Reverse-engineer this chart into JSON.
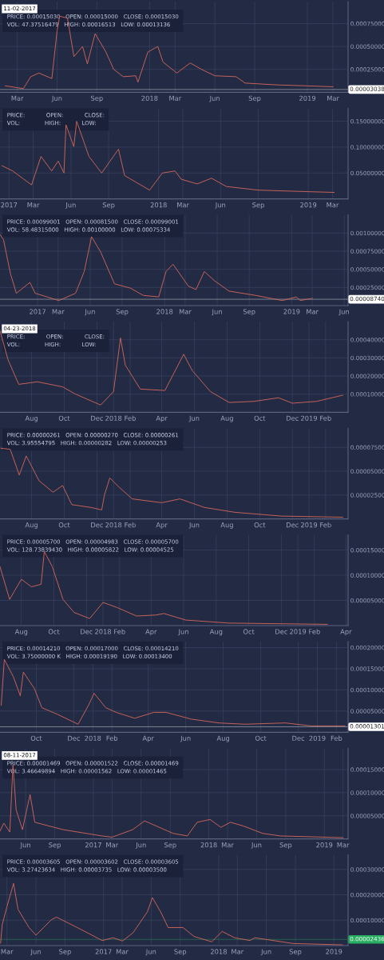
{
  "chart_data": [
    {
      "type": "line",
      "grid": true,
      "annotations": [
        "PRICE: 0.00015030   OPEN: 0.00015000   CLOSE: 0.00015030",
        "VOL: 47.37516479   HIGH: 0.00016513   LOW: 0.00013136",
        "11-02-2017"
      ],
      "xlim": [
        "2017-01-20",
        "2019-04-05"
      ],
      "ylim": [
        0,
        0.00099
      ],
      "xticks": [
        {
          "value": "2017-03-01",
          "label": "Mar"
        },
        {
          "value": "2017-06-01",
          "label": "Jun"
        },
        {
          "value": "2017-09-01",
          "label": "Sep"
        },
        {
          "value": "2018-01-01",
          "label": "2018"
        },
        {
          "value": "2018-03-01",
          "label": "Mar"
        },
        {
          "value": "2018-06-01",
          "label": "Jun"
        },
        {
          "value": "2018-09-01",
          "label": "Sep"
        },
        {
          "value": "2019-01-01",
          "label": "2019"
        },
        {
          "value": "2019-03-01",
          "label": "Mar"
        }
      ],
      "yticks": [
        {
          "value": 0.00025,
          "label": "0.00025000"
        },
        {
          "value": 0.0005,
          "label": "0.00050000"
        },
        {
          "value": 0.00075,
          "label": "0.00075000"
        }
      ],
      "ref_lines": [
        {
          "axis": "y",
          "value": 3.038e-05,
          "label": "0.00003038",
          "color": "#ffffff"
        }
      ],
      "x": [
        "2017-02-01",
        "2017-03-15",
        "2017-04-01",
        "2017-04-20",
        "2017-05-20",
        "2017-06-01",
        "2017-06-07",
        "2017-06-25",
        "2017-07-10",
        "2017-07-30",
        "2017-08-10",
        "2017-08-28",
        "2017-09-22",
        "2017-10-10",
        "2017-11-01",
        "2017-11-30",
        "2017-12-05",
        "2017-12-28",
        "2018-01-20",
        "2018-02-01",
        "2018-03-05",
        "2018-04-05",
        "2018-05-01",
        "2018-06-01",
        "2018-07-20",
        "2018-08-10",
        "2018-10-25",
        "2018-12-31",
        "2019-03-01"
      ],
      "series": [
        {
          "color": "#c8645a",
          "values": [
            7e-05,
            4e-05,
            0.00017,
            0.00021,
            0.00015,
            0.00067,
            0.00083,
            0.00081,
            0.00039,
            0.0005,
            0.00031,
            0.00064,
            0.00044,
            0.00025,
            0.00017,
            0.00018,
            0.00011,
            0.00044,
            0.0005,
            0.00033,
            0.00021,
            0.00032,
            0.00025,
            0.00018,
            0.00017,
            0.0001,
            8e-05,
            7e-05,
            6e-05
          ]
        }
      ]
    },
    {
      "type": "line",
      "grid": true,
      "annotations": [
        "PRICE:            OPEN:            CLOSE:",
        "VOL:              HIGH:            LOW:"
      ],
      "xlim": [
        "2016-12-10",
        "2019-04-08"
      ],
      "ylim": [
        0,
        0.175
      ],
      "xticks": [
        {
          "value": "2017-01-01",
          "label": "2017"
        },
        {
          "value": "2017-03-01",
          "label": "Mar"
        },
        {
          "value": "2017-06-01",
          "label": "Jun"
        },
        {
          "value": "2017-09-01",
          "label": "Sep"
        },
        {
          "value": "2018-01-01",
          "label": "2018"
        },
        {
          "value": "2018-03-01",
          "label": "Mar"
        },
        {
          "value": "2018-06-01",
          "label": "Jun"
        },
        {
          "value": "2018-09-01",
          "label": "Sep"
        },
        {
          "value": "2019-01-01",
          "label": "2019"
        },
        {
          "value": "2019-03-01",
          "label": "Mar"
        }
      ],
      "yticks": [
        {
          "value": 0.05,
          "label": "0.05000000"
        },
        {
          "value": 0.1,
          "label": "0.10000000"
        },
        {
          "value": 0.15,
          "label": "0.15000000"
        }
      ],
      "x": [
        "2016-12-15",
        "2017-01-10",
        "2017-02-25",
        "2017-03-20",
        "2017-04-15",
        "2017-05-01",
        "2017-05-15",
        "2017-05-20",
        "2017-06-08",
        "2017-06-15",
        "2017-07-15",
        "2017-08-15",
        "2017-09-25",
        "2017-10-10",
        "2017-12-10",
        "2018-01-10",
        "2018-02-10",
        "2018-02-25",
        "2018-04-05",
        "2018-05-10",
        "2018-06-15",
        "2018-09-01",
        "2019-01-01",
        "2019-03-05"
      ],
      "series": [
        {
          "color": "#c8645a",
          "values": [
            0.064,
            0.054,
            0.027,
            0.082,
            0.054,
            0.073,
            0.05,
            0.143,
            0.101,
            0.15,
            0.082,
            0.05,
            0.096,
            0.045,
            0.017,
            0.05,
            0.054,
            0.038,
            0.029,
            0.04,
            0.024,
            0.017,
            0.014,
            0.0126
          ]
        }
      ]
    },
    {
      "type": "line",
      "grid": true,
      "annotations": [
        "PRICE: 0.00099001   OPEN: 0.00081500   CLOSE: 0.00099001",
        "VOL: 58.48315000   HIGH: 0.00100000   LOW: 0.00075334"
      ],
      "xlim": [
        "2016-09-15",
        "2019-06-12"
      ],
      "ylim": [
        0,
        0.00125
      ],
      "xticks": [
        {
          "value": "2017-01-01",
          "label": "2017"
        },
        {
          "value": "2017-03-01",
          "label": "Mar"
        },
        {
          "value": "2017-06-01",
          "label": "Jun"
        },
        {
          "value": "2017-09-01",
          "label": "Sep"
        },
        {
          "value": "2018-01-01",
          "label": "2018"
        },
        {
          "value": "2018-03-01",
          "label": "Mar"
        },
        {
          "value": "2018-06-01",
          "label": "Jun"
        },
        {
          "value": "2018-09-01",
          "label": "Sep"
        },
        {
          "value": "2019-01-01",
          "label": "2019"
        },
        {
          "value": "2019-03-01",
          "label": "Mar"
        },
        {
          "value": "2019-06-01",
          "label": "Jun"
        }
      ],
      "yticks": [
        {
          "value": 0.00025,
          "label": "0.00025000"
        },
        {
          "value": 0.0005,
          "label": "0.00050000"
        },
        {
          "value": 0.00075,
          "label": "0.00075000"
        },
        {
          "value": 0.001,
          "label": "0.00100000"
        }
      ],
      "ref_lines": [
        {
          "axis": "y",
          "value": 8.74e-05,
          "label": "0.00008740",
          "color": "#ffffff"
        }
      ],
      "x": [
        "2016-09-15",
        "2016-09-25",
        "2016-10-15",
        "2016-11-01",
        "2016-12-10",
        "2016-12-25",
        "2017-03-03",
        "2017-04-20",
        "2017-05-15",
        "2017-06-05",
        "2017-07-01",
        "2017-08-10",
        "2017-09-25",
        "2017-11-01",
        "2017-12-15",
        "2018-01-05",
        "2018-01-25",
        "2018-03-10",
        "2018-04-01",
        "2018-04-25",
        "2018-05-25",
        "2018-07-05",
        "2018-09-20",
        "2018-12-05",
        "2019-01-15",
        "2019-01-25",
        "2019-03-01"
      ],
      "series": [
        {
          "color": "#c8645a",
          "values": [
            0.00098,
            0.00091,
            0.00044,
            0.00017,
            0.00032,
            0.00017,
            7e-05,
            0.00017,
            0.00047,
            0.00095,
            0.00074,
            0.0003,
            0.00024,
            0.00014,
            0.00012,
            0.00047,
            0.00057,
            0.00027,
            0.00022,
            0.00047,
            0.00034,
            0.0002,
            0.00014,
            7e-05,
            0.00012,
            7e-05,
            0.0001
          ]
        }
      ]
    },
    {
      "type": "line",
      "grid": true,
      "annotations": [
        "PRICE:            OPEN:            CLOSE:",
        "VOL:              HIGH:            LOW:",
        "04-23-2018"
      ],
      "xlim": [
        "2017-06-03",
        "2019-03-15"
      ],
      "ylim": [
        0,
        0.0005
      ],
      "xticks": [
        {
          "value": "2017-08-01",
          "label": "Aug"
        },
        {
          "value": "2017-10-01",
          "label": "Oct"
        },
        {
          "value": "2017-12-01",
          "label": "Dec"
        },
        {
          "value": "2018-01-01",
          "label": "2018"
        },
        {
          "value": "2018-02-01",
          "label": "Feb"
        },
        {
          "value": "2018-04-01",
          "label": "Apr"
        },
        {
          "value": "2018-06-01",
          "label": "Jun"
        },
        {
          "value": "2018-08-01",
          "label": "Aug"
        },
        {
          "value": "2018-10-01",
          "label": "Oct"
        },
        {
          "value": "2018-12-01",
          "label": "Dec"
        },
        {
          "value": "2019-01-01",
          "label": "2019"
        },
        {
          "value": "2019-02-01",
          "label": "Feb"
        }
      ],
      "yticks": [
        {
          "value": 0.0001,
          "label": "0.00010000"
        },
        {
          "value": 0.0002,
          "label": "0.00020000"
        },
        {
          "value": 0.0003,
          "label": "0.00030000"
        },
        {
          "value": 0.0004,
          "label": "0.00040000"
        }
      ],
      "x": [
        "2017-06-03",
        "2017-06-18",
        "2017-07-08",
        "2017-08-12",
        "2017-09-28",
        "2017-10-22",
        "2017-12-08",
        "2018-01-01",
        "2018-01-14",
        "2018-01-23",
        "2018-02-20",
        "2018-04-07",
        "2018-05-12",
        "2018-05-28",
        "2018-07-01",
        "2018-08-05",
        "2018-09-20",
        "2018-11-05",
        "2018-12-01",
        "2019-01-15",
        "2019-03-05"
      ],
      "series": [
        {
          "color": "#c8645a",
          "values": [
            0.00045,
            0.00029,
            0.000154,
            0.000168,
            0.00014,
            0.0001,
            4e-05,
            0.000114,
            0.00041,
            0.00026,
            0.000128,
            0.00012,
            0.00032,
            0.00023,
            0.000114,
            5.4e-05,
            6e-05,
            8e-05,
            5e-05,
            6e-05,
            9.4e-05
          ]
        }
      ]
    },
    {
      "type": "line",
      "grid": true,
      "annotations": [
        "PRICE: 0.00000261   OPEN: 0.00000270   CLOSE: 0.00000261",
        "VOL: 3.95554795   HIGH: 0.00000282   LOW: 0.00000253"
      ],
      "xlim": [
        "2017-06-03",
        "2019-03-15"
      ],
      "ylim": [
        0,
        9.5e-05
      ],
      "xticks": [
        {
          "value": "2017-08-01",
          "label": "Aug"
        },
        {
          "value": "2017-10-01",
          "label": "Oct"
        },
        {
          "value": "2017-12-01",
          "label": "Dec"
        },
        {
          "value": "2018-01-01",
          "label": "2018"
        },
        {
          "value": "2018-02-01",
          "label": "Feb"
        },
        {
          "value": "2018-04-01",
          "label": "Apr"
        },
        {
          "value": "2018-06-01",
          "label": "Jun"
        },
        {
          "value": "2018-08-01",
          "label": "Aug"
        },
        {
          "value": "2018-10-01",
          "label": "Oct"
        },
        {
          "value": "2018-12-01",
          "label": "Dec"
        },
        {
          "value": "2019-01-01",
          "label": "2019"
        },
        {
          "value": "2019-02-01",
          "label": "Feb"
        }
      ],
      "yticks": [
        {
          "value": 2.5e-05,
          "label": "0.00002500"
        },
        {
          "value": 5e-05,
          "label": "0.00005000"
        },
        {
          "value": 7.5e-05,
          "label": "0.00007500"
        }
      ],
      "x": [
        "2017-06-05",
        "2017-06-22",
        "2017-07-09",
        "2017-07-22",
        "2017-08-15",
        "2017-09-10",
        "2017-09-28",
        "2017-10-15",
        "2017-11-20",
        "2017-12-10",
        "2017-12-15",
        "2017-12-25",
        "2018-01-12",
        "2018-02-05",
        "2018-04-01",
        "2018-05-05",
        "2018-06-20",
        "2018-08-15",
        "2018-11-10",
        "2019-03-05"
      ],
      "series": [
        {
          "color": "#c8645a",
          "values": [
            7.4e-05,
            7.3e-05,
            4.6e-05,
            6.6e-05,
            4e-05,
            2.8e-05,
            3.5e-05,
            1.5e-05,
            1.2e-05,
            9.5e-06,
            2.5e-05,
            4.3e-05,
            3.3e-05,
            2.1e-05,
            1.7e-05,
            2.1e-05,
            1.2e-05,
            7e-06,
            3e-06,
            1.8e-06
          ]
        }
      ]
    },
    {
      "type": "line",
      "grid": true,
      "annotations": [
        "PRICE: 0.00005700   OPEN: 0.00004983   CLOSE: 0.00005700",
        "VOL: 128.73839430   HIGH: 0.00005822   LOW: 0.00004525"
      ],
      "xlim": [
        "2017-06-22",
        "2019-04-05"
      ],
      "ylim": [
        0,
        0.00018
      ],
      "xticks": [
        {
          "value": "2017-08-01",
          "label": "Aug"
        },
        {
          "value": "2017-10-01",
          "label": "Oct"
        },
        {
          "value": "2017-12-01",
          "label": "Dec"
        },
        {
          "value": "2018-01-01",
          "label": "2018"
        },
        {
          "value": "2018-02-01",
          "label": "Feb"
        },
        {
          "value": "2018-04-01",
          "label": "Apr"
        },
        {
          "value": "2018-06-01",
          "label": "Jun"
        },
        {
          "value": "2018-08-01",
          "label": "Aug"
        },
        {
          "value": "2018-10-01",
          "label": "Oct"
        },
        {
          "value": "2018-12-01",
          "label": "Dec"
        },
        {
          "value": "2019-01-01",
          "label": "2019"
        },
        {
          "value": "2019-02-01",
          "label": "Feb"
        },
        {
          "value": "2019-04-01",
          "label": "Apr"
        }
      ],
      "yticks": [
        {
          "value": 5e-05,
          "label": "0.00005000"
        },
        {
          "value": 0.0001,
          "label": "0.00010000"
        },
        {
          "value": 0.00015,
          "label": "0.00015000"
        }
      ],
      "x": [
        "2017-06-22",
        "2017-07-10",
        "2017-08-01",
        "2017-08-20",
        "2017-09-07",
        "2017-09-13",
        "2017-09-28",
        "2017-10-18",
        "2017-11-08",
        "2017-12-07",
        "2018-01-01",
        "2018-01-27",
        "2018-03-05",
        "2018-04-10",
        "2018-04-25",
        "2018-06-05",
        "2018-08-25",
        "2019-02-25"
      ],
      "series": [
        {
          "color": "#c8645a",
          "values": [
            0.000117,
            5.2e-05,
            9.2e-05,
            7.7e-05,
            8.2e-05,
            0.000147,
            0.000117,
            5.2e-05,
            2.6e-05,
            1.4e-05,
            4.6e-05,
            3.6e-05,
            1.9e-05,
            2.1e-05,
            2.4e-05,
            1.1e-05,
            5e-06,
            2.5e-06
          ]
        }
      ]
    },
    {
      "type": "line",
      "grid": true,
      "annotations": [
        "PRICE: 0.00014210   OPEN: 0.00017000   CLOSE: 0.00014210",
        "VOL: 3.75000000 K   HIGH: 0.00019190   LOW: 0.00013400"
      ],
      "xlim": [
        "2017-08-03",
        "2019-02-20"
      ],
      "ylim": [
        0,
        0.000214
      ],
      "xticks": [
        {
          "value": "2017-10-01",
          "label": "Oct"
        },
        {
          "value": "2017-12-01",
          "label": "Dec"
        },
        {
          "value": "2018-01-01",
          "label": "2018"
        },
        {
          "value": "2018-02-01",
          "label": "Feb"
        },
        {
          "value": "2018-04-01",
          "label": "Apr"
        },
        {
          "value": "2018-06-01",
          "label": "Jun"
        },
        {
          "value": "2018-08-01",
          "label": "Aug"
        },
        {
          "value": "2018-10-01",
          "label": "Oct"
        },
        {
          "value": "2018-12-01",
          "label": "Dec"
        },
        {
          "value": "2019-01-01",
          "label": "2019"
        },
        {
          "value": "2019-02-01",
          "label": "Feb"
        }
      ],
      "yticks": [
        {
          "value": 5e-05,
          "label": "0.00005000"
        },
        {
          "value": 0.0001,
          "label": "0.00010000"
        },
        {
          "value": 0.00015,
          "label": "0.00015000"
        },
        {
          "value": 0.0002,
          "label": "0.00020000"
        }
      ],
      "ref_lines": [
        {
          "axis": "y",
          "value": 1.301e-05,
          "label": "0.00001301",
          "color": "#ffffff"
        }
      ],
      "x": [
        "2017-08-05",
        "2017-08-10",
        "2017-08-25",
        "2017-09-05",
        "2017-09-10",
        "2017-09-28",
        "2017-10-10",
        "2017-11-05",
        "2017-12-08",
        "2017-12-25",
        "2018-01-03",
        "2018-01-22",
        "2018-02-08",
        "2018-03-10",
        "2018-04-10",
        "2018-04-30",
        "2018-06-10",
        "2018-07-25",
        "2018-09-05",
        "2018-11-10",
        "2018-12-22",
        "2019-02-15"
      ],
      "series": [
        {
          "color": "#c8645a",
          "values": [
            6.4e-05,
            0.000172,
            0.00013,
            8.6e-05,
            0.000142,
            0.000103,
            5.8e-05,
            4.2e-05,
            1.9e-05,
            6.4e-05,
            9.2e-05,
            5.8e-05,
            4.7e-05,
            3.3e-05,
            4.7e-05,
            4.7e-05,
            3.1e-05,
            2.2e-05,
            1.9e-05,
            2.2e-05,
            1.5e-05,
            1.5e-05
          ]
        }
      ]
    },
    {
      "type": "line",
      "grid": true,
      "annotations": [
        "PRICE: 0.00001469   OPEN: 0.00001522   CLOSE: 0.00001469",
        "VOL: 3.46649894   HIGH: 0.00001562   LOW: 0.00001465",
        "08-11-2017"
      ],
      "xlim": [
        "2016-03-12",
        "2019-03-17"
      ],
      "ylim": [
        0,
        0.000196
      ],
      "xticks": [
        {
          "value": "2016-06-01",
          "label": "Jun"
        },
        {
          "value": "2016-09-01",
          "label": "Sep"
        },
        {
          "value": "2017-01-01",
          "label": "2017"
        },
        {
          "value": "2017-03-01",
          "label": "Mar"
        },
        {
          "value": "2017-06-01",
          "label": "Jun"
        },
        {
          "value": "2017-09-01",
          "label": "Sep"
        },
        {
          "value": "2018-01-01",
          "label": "2018"
        },
        {
          "value": "2018-03-01",
          "label": "Mar"
        },
        {
          "value": "2018-06-01",
          "label": "Jun"
        },
        {
          "value": "2018-09-01",
          "label": "Sep"
        },
        {
          "value": "2019-01-01",
          "label": "2019"
        },
        {
          "value": "2019-03-01",
          "label": "Mar"
        }
      ],
      "yticks": [
        {
          "value": 5e-05,
          "label": "0.00005000"
        },
        {
          "value": 0.0001,
          "label": "0.00010000"
        },
        {
          "value": 0.00015,
          "label": "0.00015000"
        }
      ],
      "x": [
        "2016-03-12",
        "2016-03-24",
        "2016-04-12",
        "2016-04-22",
        "2016-05-02",
        "2016-05-22",
        "2016-06-15",
        "2016-06-30",
        "2016-09-28",
        "2017-01-28",
        "2017-03-01",
        "2017-05-05",
        "2017-06-12",
        "2017-09-10",
        "2017-10-25",
        "2017-11-25",
        "2018-01-05",
        "2018-02-08",
        "2018-03-10",
        "2018-04-20",
        "2018-06-20",
        "2018-08-15",
        "2019-03-01"
      ],
      "series": [
        {
          "color": "#c8645a",
          "values": [
            1.7e-05,
            3.4e-05,
            1.5e-05,
            0.00016,
            6.3e-05,
            2e-05,
            9.6e-05,
            3.6e-05,
            2e-05,
            6.5e-06,
            3.8e-06,
            2e-05,
            3.9e-05,
            1.2e-05,
            6.5e-06,
            3.6e-05,
            4.2e-05,
            2.5e-05,
            3.6e-05,
            2.8e-05,
            1.2e-05,
            6.5e-06,
            2.7e-06
          ]
        }
      ]
    },
    {
      "type": "line",
      "grid": true,
      "annotations": [
        "PRICE: 0.00003605   OPEN: 0.00003602   CLOSE: 0.00003605",
        "VOL: 3.27423634   HIGH: 0.00003735   LOW: 0.00003500"
      ],
      "xlim": [
        "2016-02-08",
        "2019-02-15"
      ],
      "ylim": [
        0,
        0.000357
      ],
      "xticks": [
        {
          "value": "2016-03-01",
          "label": "Mar"
        },
        {
          "value": "2016-06-01",
          "label": "Jun"
        },
        {
          "value": "2016-09-01",
          "label": "Sep"
        },
        {
          "value": "2017-01-01",
          "label": "2017"
        },
        {
          "value": "2017-03-01",
          "label": "Mar"
        },
        {
          "value": "2017-06-01",
          "label": "Jun"
        },
        {
          "value": "2017-09-01",
          "label": "Sep"
        },
        {
          "value": "2018-01-01",
          "label": "2018"
        },
        {
          "value": "2018-03-01",
          "label": "Mar"
        },
        {
          "value": "2018-06-01",
          "label": "Jun"
        },
        {
          "value": "2018-09-01",
          "label": "Sep"
        },
        {
          "value": "2019-01-01",
          "label": "2019"
        }
      ],
      "yticks": [
        {
          "value": 0.0001,
          "label": "0.00010000"
        },
        {
          "value": 0.0002,
          "label": "0.00020000"
        },
        {
          "value": 0.0003,
          "label": "0.00030000"
        }
      ],
      "ref_lines": [
        {
          "axis": "y",
          "value": 2.436e-05,
          "label": "0.00002436",
          "color": "#27ae60"
        }
      ],
      "x": [
        "2016-02-10",
        "2016-02-15",
        "2016-03-01",
        "2016-03-22",
        "2016-04-05",
        "2016-05-10",
        "2016-06-01",
        "2016-06-25",
        "2016-07-20",
        "2016-08-05",
        "2016-10-10",
        "2016-12-28",
        "2017-02-01",
        "2017-03-02",
        "2017-04-05",
        "2017-05-20",
        "2017-06-05",
        "2017-07-01",
        "2017-07-25",
        "2017-09-10",
        "2017-10-15",
        "2017-12-10",
        "2018-01-12",
        "2018-02-20",
        "2018-04-10",
        "2018-04-25",
        "2018-08-25",
        "2019-01-28"
      ],
      "series": [
        {
          "color": "#c8645a",
          "values": [
            1e-05,
            8.2e-05,
            0.000153,
            0.000245,
            0.000143,
            7.1e-05,
            4.1e-05,
            7.1e-05,
            0.000102,
            0.000112,
            7.1e-05,
            2e-05,
            3.1e-05,
            1.8e-05,
            5.1e-05,
            0.000133,
            0.000189,
            0.000133,
            7.1e-05,
            7.1e-05,
            3.6e-05,
            1.5e-05,
            5.6e-05,
            3.1e-05,
            2e-05,
            3.1e-05,
            8.2e-06,
            3e-06
          ]
        }
      ]
    }
  ]
}
